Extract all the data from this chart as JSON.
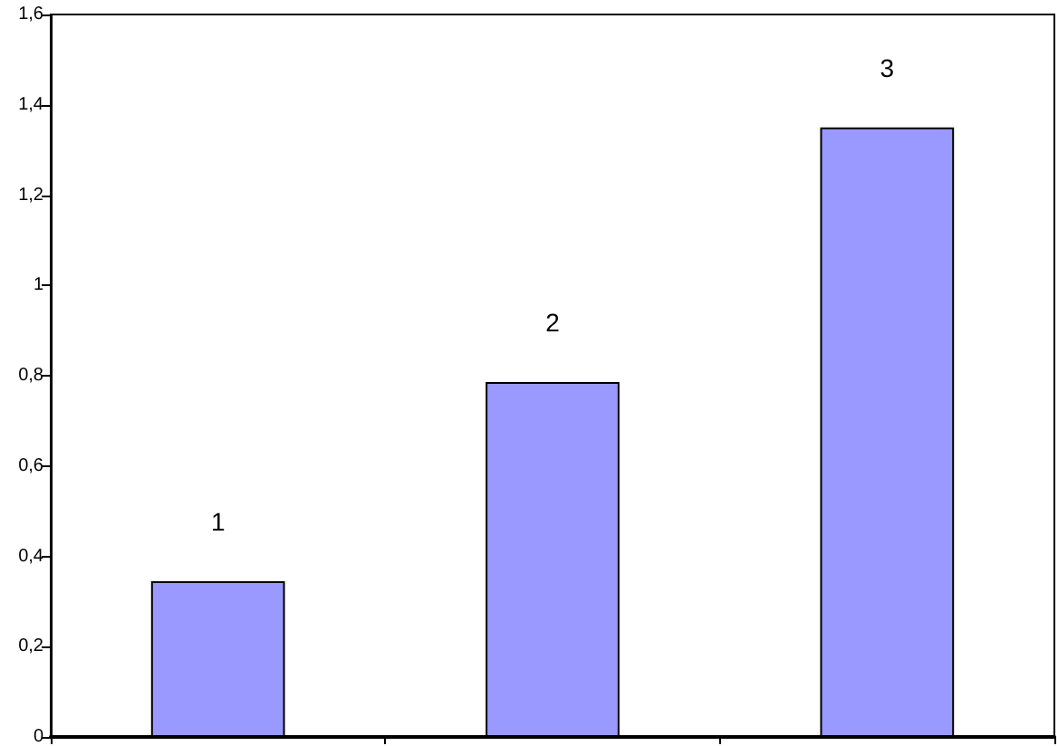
{
  "chart_data": {
    "type": "bar",
    "categories": [
      "1",
      "2",
      "3"
    ],
    "values": [
      0.345,
      0.786,
      1.35
    ],
    "color": "#9999ff",
    "ylim": [
      0,
      1.6
    ],
    "yticks": [
      0,
      {
        "value": 0.2,
        "label": "0,2"
      },
      {
        "value": 0.4,
        "label": "0,4"
      },
      {
        "value": 0.6,
        "label": "0,6"
      },
      {
        "value": 0.8,
        "label": "0,8"
      },
      1,
      {
        "value": 1.2,
        "label": "1,2"
      },
      {
        "value": 1.4,
        "label": "1,4"
      },
      {
        "value": 1.6,
        "label": "1,6"
      }
    ],
    "grid": false
  }
}
